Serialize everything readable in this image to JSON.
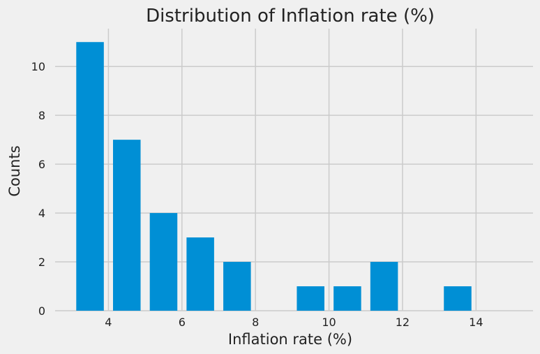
{
  "chart_data": {
    "type": "bar",
    "title": "Distribution of Inflation rate (%)",
    "xlabel": "Inflation rate (%)",
    "ylabel": "Counts",
    "xlim": [
      2.55,
      15.55
    ],
    "ylim": [
      0,
      11.55
    ],
    "xticks": [
      4,
      6,
      8,
      10,
      12,
      14
    ],
    "yticks": [
      0,
      2,
      4,
      6,
      8,
      10
    ],
    "grid": true,
    "bar_color": "#008fd5",
    "bins": [
      {
        "x0": 3.0,
        "x1": 4.0,
        "count": 11
      },
      {
        "x0": 4.0,
        "x1": 5.0,
        "count": 7
      },
      {
        "x0": 5.0,
        "x1": 6.0,
        "count": 4
      },
      {
        "x0": 6.0,
        "x1": 7.0,
        "count": 3
      },
      {
        "x0": 7.0,
        "x1": 8.0,
        "count": 2
      },
      {
        "x0": 8.0,
        "x1": 9.0,
        "count": 0
      },
      {
        "x0": 9.0,
        "x1": 10.0,
        "count": 1
      },
      {
        "x0": 10.0,
        "x1": 11.0,
        "count": 1
      },
      {
        "x0": 11.0,
        "x1": 12.0,
        "count": 2
      },
      {
        "x0": 12.0,
        "x1": 13.0,
        "count": 0
      },
      {
        "x0": 13.0,
        "x1": 14.0,
        "count": 1
      }
    ]
  }
}
